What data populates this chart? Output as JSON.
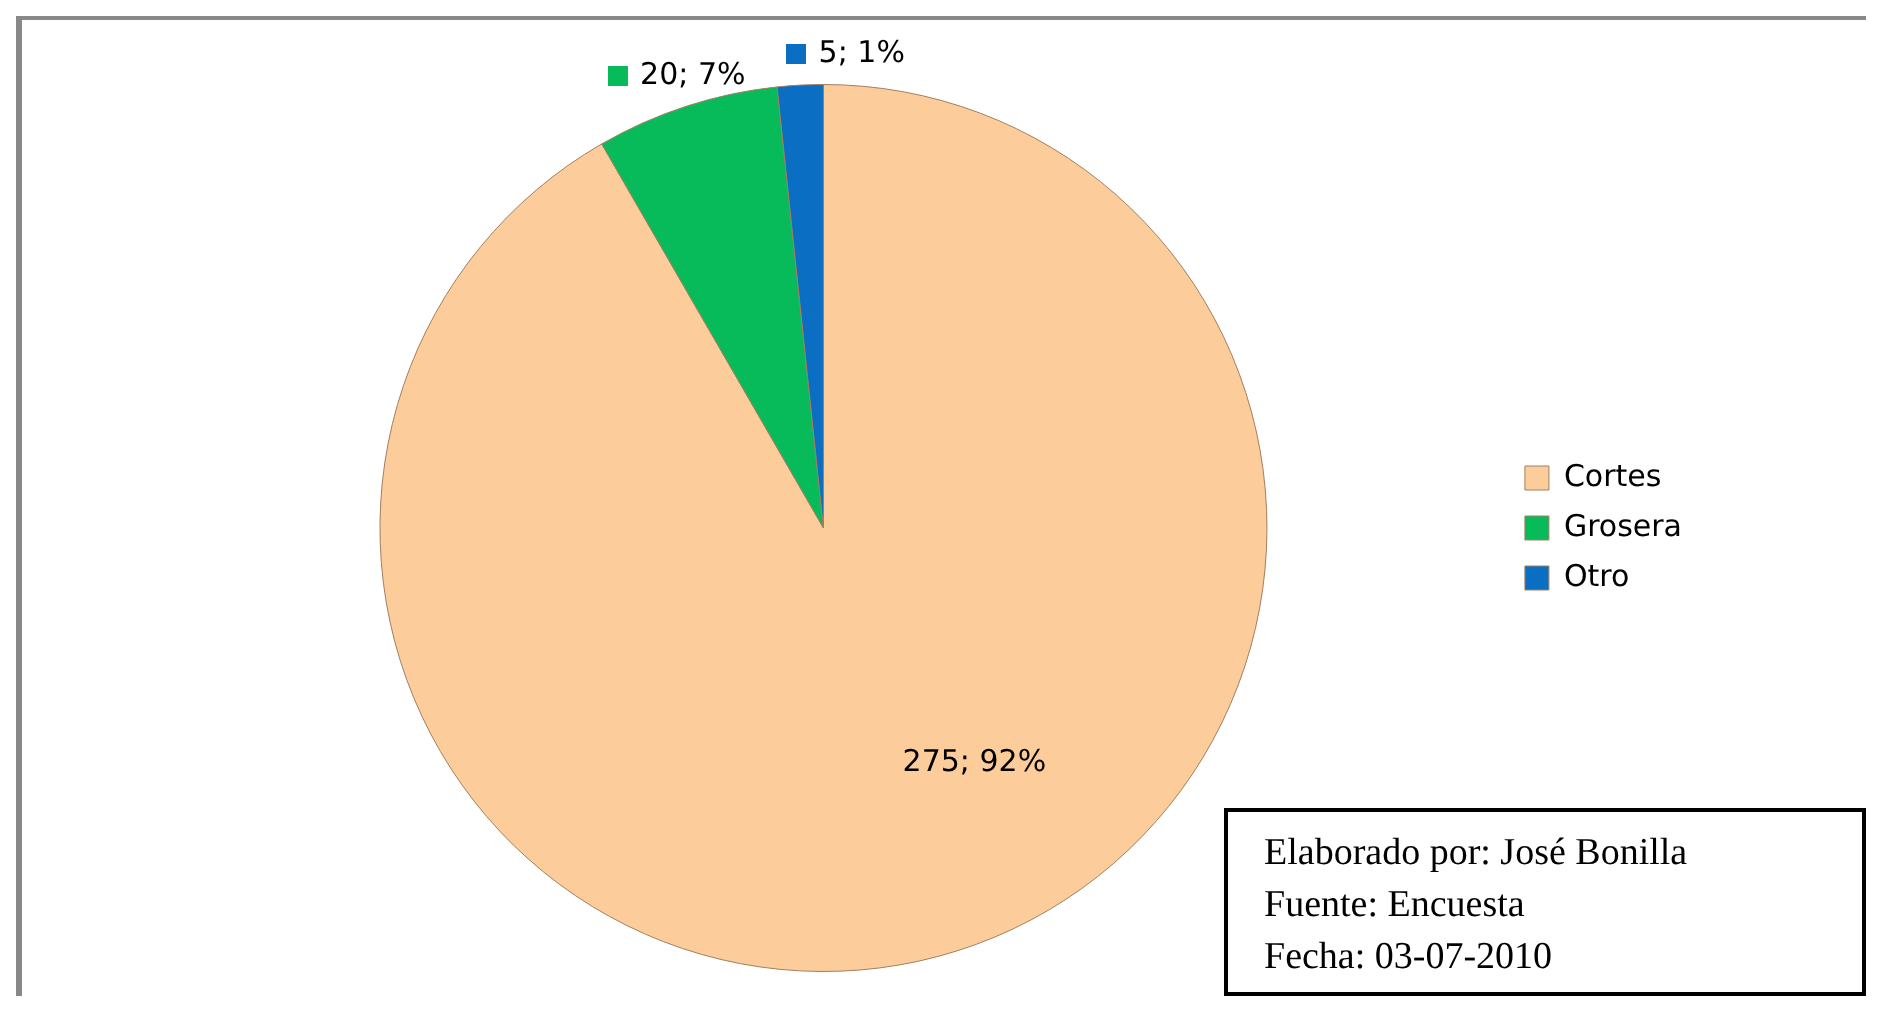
{
  "chart_data": {
    "type": "pie",
    "categories": [
      "Cortes",
      "Grosera",
      "Otro"
    ],
    "values": [
      275,
      20,
      5
    ],
    "colors": [
      "#fccc9a",
      "#07bb5a",
      "#0a6fc2"
    ],
    "value_labels": [
      "275; 92%",
      "20; 7%",
      "5; 1%"
    ],
    "legend": "right",
    "annotations": [
      "Elaborado por: José Bonilla",
      "Fuente: Encuesta",
      "Fecha: 03-07-2010"
    ]
  }
}
